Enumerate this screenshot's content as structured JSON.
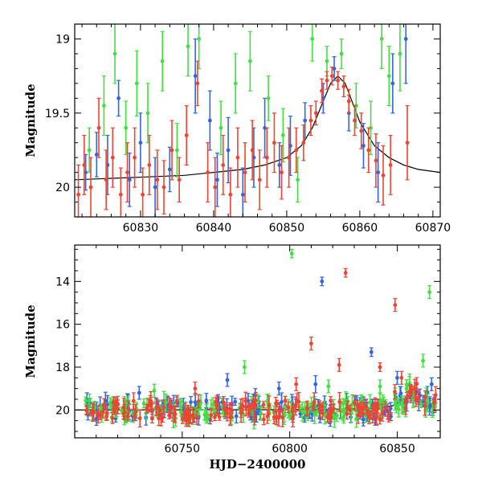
{
  "chart_data": [
    {
      "type": "scatter",
      "panel": "top",
      "title": "",
      "xlabel": "",
      "ylabel": "Magnitude",
      "xlim": [
        60821,
        60871
      ],
      "ylim": [
        20.2,
        18.9
      ],
      "y_inverted": true,
      "xticks": [
        60830,
        60840,
        60850,
        60860,
        60870
      ],
      "yticks": [
        19,
        19.5,
        20
      ],
      "xtick_labels": [
        "60830",
        "60840",
        "60850",
        "60860",
        "60870"
      ],
      "ytick_labels": [
        "19",
        "19.5",
        "20"
      ],
      "model_curve": {
        "x": [
          60821,
          60826,
          60831,
          60836,
          60840,
          60844,
          60847,
          60850,
          60852,
          60853.5,
          60855,
          60856,
          60857,
          60858,
          60859,
          60860,
          60862,
          60864,
          60866,
          60868,
          60871
        ],
        "y": [
          19.95,
          19.94,
          19.93,
          19.92,
          19.9,
          19.88,
          19.85,
          19.8,
          19.72,
          19.6,
          19.42,
          19.3,
          19.25,
          19.3,
          19.43,
          19.56,
          19.72,
          19.8,
          19.85,
          19.88,
          19.9
        ]
      },
      "series": [
        {
          "name": "",
          "color": "#3366dd",
          "points": [
            {
              "x": 60822.5,
              "y": 19.9,
              "err": 0.12
            },
            {
              "x": 60824,
              "y": 19.78,
              "err": 0.15
            },
            {
              "x": 60825.5,
              "y": 19.85,
              "err": 0.2
            },
            {
              "x": 60827,
              "y": 19.4,
              "err": 0.12
            },
            {
              "x": 60828.5,
              "y": 19.95,
              "err": 0.18
            },
            {
              "x": 60830,
              "y": 19.7,
              "err": 0.2
            },
            {
              "x": 60832,
              "y": 20.0,
              "err": 0.2
            },
            {
              "x": 60834,
              "y": 19.88,
              "err": 0.15
            },
            {
              "x": 60837.5,
              "y": 19.25,
              "err": 0.25
            },
            {
              "x": 60839.5,
              "y": 19.55,
              "err": 0.2
            },
            {
              "x": 60840.5,
              "y": 19.95,
              "err": 0.18
            },
            {
              "x": 60842,
              "y": 19.75,
              "err": 0.22
            },
            {
              "x": 60844,
              "y": 20.05,
              "err": 0.18
            },
            {
              "x": 60845.5,
              "y": 19.8,
              "err": 0.2
            },
            {
              "x": 60847,
              "y": 19.6,
              "err": 0.2
            },
            {
              "x": 60849,
              "y": 19.85,
              "err": 0.15
            },
            {
              "x": 60850.5,
              "y": 19.72,
              "err": 0.2
            },
            {
              "x": 60852.5,
              "y": 19.55,
              "err": 0.12
            },
            {
              "x": 60855,
              "y": 19.4,
              "err": 0.1
            },
            {
              "x": 60856.5,
              "y": 19.2,
              "err": 0.08
            },
            {
              "x": 60858.5,
              "y": 19.5,
              "err": 0.12
            },
            {
              "x": 60860.5,
              "y": 19.72,
              "err": 0.15
            },
            {
              "x": 60862.5,
              "y": 19.9,
              "err": 0.2
            },
            {
              "x": 60864.5,
              "y": 19.3,
              "err": 0.2
            },
            {
              "x": 60866.3,
              "y": 19.0,
              "err": 0.3
            }
          ]
        },
        {
          "name": "",
          "color": "#44dd44",
          "points": [
            {
              "x": 60823,
              "y": 19.75,
              "err": 0.15
            },
            {
              "x": 60825,
              "y": 19.45,
              "err": 0.2
            },
            {
              "x": 60826.5,
              "y": 19.1,
              "err": 0.2
            },
            {
              "x": 60828,
              "y": 19.6,
              "err": 0.18
            },
            {
              "x": 60829.5,
              "y": 19.3,
              "err": 0.22
            },
            {
              "x": 60831,
              "y": 19.5,
              "err": 0.2
            },
            {
              "x": 60833,
              "y": 19.15,
              "err": 0.2
            },
            {
              "x": 60835,
              "y": 19.75,
              "err": 0.18
            },
            {
              "x": 60836.5,
              "y": 19.05,
              "err": 0.2
            },
            {
              "x": 60838,
              "y": 19.0,
              "err": 0.2
            },
            {
              "x": 60841,
              "y": 19.6,
              "err": 0.18
            },
            {
              "x": 60843,
              "y": 19.3,
              "err": 0.2
            },
            {
              "x": 60845,
              "y": 19.15,
              "err": 0.2
            },
            {
              "x": 60847.5,
              "y": 19.4,
              "err": 0.15
            },
            {
              "x": 60849.5,
              "y": 19.65,
              "err": 0.18
            },
            {
              "x": 60851.5,
              "y": 19.95,
              "err": 0.15
            },
            {
              "x": 60853.5,
              "y": 19.0,
              "err": 0.15
            },
            {
              "x": 60855.5,
              "y": 19.15,
              "err": 0.1
            },
            {
              "x": 60857.5,
              "y": 19.1,
              "err": 0.1
            },
            {
              "x": 60859.5,
              "y": 19.45,
              "err": 0.15
            },
            {
              "x": 60861.5,
              "y": 19.6,
              "err": 0.18
            },
            {
              "x": 60863,
              "y": 19.0,
              "err": 0.2
            },
            {
              "x": 60864,
              "y": 19.25,
              "err": 0.2
            },
            {
              "x": 60865.5,
              "y": 19.1,
              "err": 0.25
            }
          ]
        },
        {
          "name": "",
          "color": "#ee4433",
          "points": [
            {
              "x": 60821.5,
              "y": 20.05,
              "err": 0.2
            },
            {
              "x": 60822.3,
              "y": 19.85,
              "err": 0.2
            },
            {
              "x": 60823.2,
              "y": 20.0,
              "err": 0.2
            },
            {
              "x": 60824.3,
              "y": 19.6,
              "err": 0.2
            },
            {
              "x": 60825.3,
              "y": 19.95,
              "err": 0.2
            },
            {
              "x": 60826.2,
              "y": 19.8,
              "err": 0.2
            },
            {
              "x": 60827.3,
              "y": 20.05,
              "err": 0.18
            },
            {
              "x": 60828.2,
              "y": 19.9,
              "err": 0.2
            },
            {
              "x": 60829.2,
              "y": 19.8,
              "err": 0.2
            },
            {
              "x": 60830.3,
              "y": 20.05,
              "err": 0.18
            },
            {
              "x": 60831.2,
              "y": 19.85,
              "err": 0.2
            },
            {
              "x": 60832.3,
              "y": 19.95,
              "err": 0.2
            },
            {
              "x": 60833.2,
              "y": 20.0,
              "err": 0.18
            },
            {
              "x": 60834.3,
              "y": 19.75,
              "err": 0.2
            },
            {
              "x": 60835.3,
              "y": 19.95,
              "err": 0.15
            },
            {
              "x": 60836.3,
              "y": 19.65,
              "err": 0.2
            },
            {
              "x": 60837.8,
              "y": 19.3,
              "err": 0.15
            },
            {
              "x": 60839.2,
              "y": 19.9,
              "err": 0.2
            },
            {
              "x": 60840.2,
              "y": 20.0,
              "err": 0.2
            },
            {
              "x": 60841.3,
              "y": 19.85,
              "err": 0.2
            },
            {
              "x": 60842.3,
              "y": 20.05,
              "err": 0.18
            },
            {
              "x": 60843.3,
              "y": 19.8,
              "err": 0.2
            },
            {
              "x": 60844.3,
              "y": 19.9,
              "err": 0.2
            },
            {
              "x": 60845.3,
              "y": 19.75,
              "err": 0.2
            },
            {
              "x": 60846.3,
              "y": 19.95,
              "err": 0.2
            },
            {
              "x": 60847.3,
              "y": 19.8,
              "err": 0.2
            },
            {
              "x": 60848.3,
              "y": 19.7,
              "err": 0.2
            },
            {
              "x": 60849.3,
              "y": 19.9,
              "err": 0.18
            },
            {
              "x": 60850.3,
              "y": 19.8,
              "err": 0.2
            },
            {
              "x": 60851.3,
              "y": 19.75,
              "err": 0.15
            },
            {
              "x": 60852.3,
              "y": 19.7,
              "err": 0.12
            },
            {
              "x": 60853.3,
              "y": 19.55,
              "err": 0.1
            },
            {
              "x": 60854,
              "y": 19.5,
              "err": 0.08
            },
            {
              "x": 60854.8,
              "y": 19.35,
              "err": 0.08
            },
            {
              "x": 60855.5,
              "y": 19.28,
              "err": 0.06
            },
            {
              "x": 60856.2,
              "y": 19.25,
              "err": 0.06
            },
            {
              "x": 60857,
              "y": 19.28,
              "err": 0.06
            },
            {
              "x": 60857.8,
              "y": 19.32,
              "err": 0.07
            },
            {
              "x": 60858.5,
              "y": 19.42,
              "err": 0.08
            },
            {
              "x": 60859.3,
              "y": 19.55,
              "err": 0.1
            },
            {
              "x": 60860.2,
              "y": 19.62,
              "err": 0.12
            },
            {
              "x": 60861.2,
              "y": 19.75,
              "err": 0.15
            },
            {
              "x": 60862.2,
              "y": 19.82,
              "err": 0.18
            },
            {
              "x": 60863.2,
              "y": 19.92,
              "err": 0.2
            },
            {
              "x": 60864.2,
              "y": 19.85,
              "err": 0.2
            },
            {
              "x": 60866.5,
              "y": 19.7,
              "err": 0.25
            }
          ]
        }
      ]
    },
    {
      "type": "scatter",
      "panel": "bottom",
      "title": "",
      "xlabel": "HJD−2400000",
      "ylabel": "Magnitude",
      "xlim": [
        60700,
        60870
      ],
      "ylim": [
        21.3,
        12.3
      ],
      "y_inverted": true,
      "xticks": [
        60750,
        60800,
        60850
      ],
      "yticks": [
        14,
        16,
        18,
        20
      ],
      "xtick_labels": [
        "60750",
        "60800",
        "60850"
      ],
      "ytick_labels": [
        "14",
        "16",
        "18",
        "20"
      ],
      "model_curve": {
        "x": [
          60700,
          60780,
          60820,
          60840,
          60848,
          60852,
          60856,
          60860,
          60864,
          60868
        ],
        "y": [
          20.0,
          19.99,
          19.97,
          19.92,
          19.8,
          19.55,
          19.3,
          19.45,
          19.75,
          19.85
        ]
      },
      "series": [
        {
          "name": "",
          "color": "#3366dd",
          "outliers": [
            {
              "x": 60815,
              "y": 14.0,
              "err": 0.2
            },
            {
              "x": 60838,
              "y": 17.3,
              "err": 0.2
            },
            {
              "x": 60771,
              "y": 18.6,
              "err": 0.3
            },
            {
              "x": 60812,
              "y": 18.8,
              "err": 0.4
            },
            {
              "x": 60850,
              "y": 18.5,
              "err": 0.3
            },
            {
              "x": 60730,
              "y": 19.2,
              "err": 0.3
            },
            {
              "x": 60784,
              "y": 19.3,
              "err": 0.3
            },
            {
              "x": 60795,
              "y": 19.0,
              "err": 0.3
            },
            {
              "x": 60866,
              "y": 18.8,
              "err": 0.3
            }
          ]
        },
        {
          "name": "",
          "color": "#44dd44",
          "outliers": [
            {
              "x": 60801,
              "y": 12.7,
              "err": 0.2
            },
            {
              "x": 60865,
              "y": 14.5,
              "err": 0.3
            },
            {
              "x": 60862,
              "y": 17.7,
              "err": 0.3
            },
            {
              "x": 60779,
              "y": 18.0,
              "err": 0.3
            },
            {
              "x": 60842,
              "y": 18.9,
              "err": 0.3
            },
            {
              "x": 60737,
              "y": 19.1,
              "err": 0.3
            },
            {
              "x": 60818,
              "y": 18.9,
              "err": 0.3
            }
          ]
        },
        {
          "name": "",
          "color": "#ee4433",
          "outliers": [
            {
              "x": 60826,
              "y": 13.6,
              "err": 0.2
            },
            {
              "x": 60849,
              "y": 15.1,
              "err": 0.3
            },
            {
              "x": 60810,
              "y": 16.9,
              "err": 0.3
            },
            {
              "x": 60823,
              "y": 17.9,
              "err": 0.3
            },
            {
              "x": 60842,
              "y": 18.0,
              "err": 0.2
            },
            {
              "x": 60852,
              "y": 18.5,
              "err": 0.3
            },
            {
              "x": 60756,
              "y": 19.0,
              "err": 0.3
            },
            {
              "x": 60803,
              "y": 18.8,
              "err": 0.3
            }
          ]
        }
      ]
    }
  ]
}
